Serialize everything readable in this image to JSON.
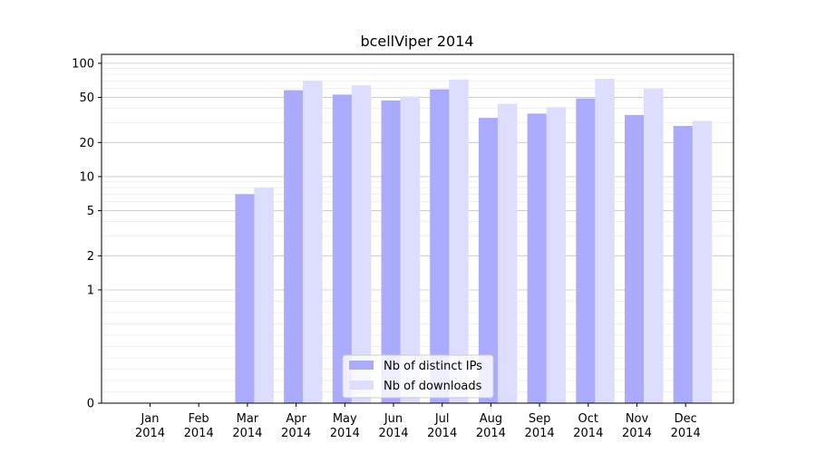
{
  "chart_data": {
    "type": "bar",
    "title": "bcellViper 2014",
    "xlabel": "",
    "ylabel": "",
    "yscale": "symlog",
    "ylim": [
      0,
      120
    ],
    "yticks": [
      0,
      1,
      2,
      5,
      10,
      20,
      50,
      100
    ],
    "ytick_labels": [
      "0",
      "1",
      "2",
      "5",
      "10",
      "20",
      "50",
      "100"
    ],
    "categories": [
      [
        "Jan",
        "2014"
      ],
      [
        "Feb",
        "2014"
      ],
      [
        "Mar",
        "2014"
      ],
      [
        "Apr",
        "2014"
      ],
      [
        "May",
        "2014"
      ],
      [
        "Jun",
        "2014"
      ],
      [
        "Jul",
        "2014"
      ],
      [
        "Aug",
        "2014"
      ],
      [
        "Sep",
        "2014"
      ],
      [
        "Oct",
        "2014"
      ],
      [
        "Nov",
        "2014"
      ],
      [
        "Dec",
        "2014"
      ]
    ],
    "series": [
      {
        "name": "Nb of distinct IPs",
        "color": "#aaaaff",
        "values": [
          0,
          0,
          7,
          58,
          53,
          47,
          59,
          33,
          36,
          49,
          35,
          28
        ]
      },
      {
        "name": "Nb of downloads",
        "color": "#ddddff",
        "values": [
          0,
          0,
          8,
          70,
          64,
          51,
          72,
          44,
          41,
          73,
          60,
          31
        ]
      }
    ],
    "grid": true,
    "legend_position": "lower-center"
  }
}
